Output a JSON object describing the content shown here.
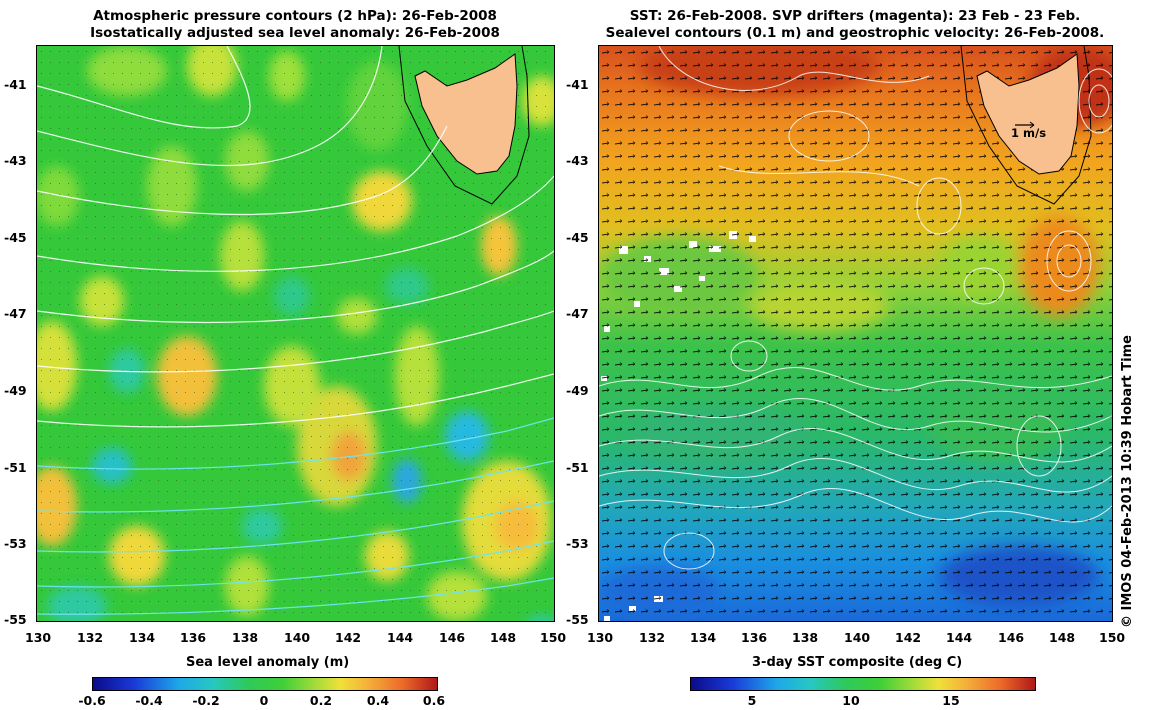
{
  "left_panel": {
    "title_line1": "Atmospheric pressure contours (2 hPa): 26-Feb-2008",
    "title_line2": "Isostatically adjusted sea level anomaly: 26-Feb-2008",
    "y_ticks": [
      "-41",
      "-43",
      "-45",
      "-47",
      "-49",
      "-51",
      "-53",
      "-55"
    ],
    "x_ticks": [
      "130",
      "132",
      "134",
      "136",
      "138",
      "140",
      "142",
      "144",
      "146",
      "148",
      "150"
    ],
    "colorbar_title": "Sea level anomaly (m)",
    "colorbar_ticks": [
      "-0.6",
      "-0.4",
      "-0.2",
      "0",
      "0.2",
      "0.4",
      "0.6"
    ]
  },
  "right_panel": {
    "title_line1": "SST: 26-Feb-2008. SVP drifters (magenta): 23 Feb - 23 Feb.",
    "title_line2": "Sealevel contours (0.1 m) and geostrophic velocity: 26-Feb-2008.",
    "y_ticks": [
      "-41",
      "-43",
      "-45",
      "-47",
      "-49",
      "-51",
      "-53",
      "-55"
    ],
    "x_ticks": [
      "130",
      "132",
      "134",
      "136",
      "138",
      "140",
      "142",
      "144",
      "146",
      "148",
      "150"
    ],
    "scale_label": "1 m/s",
    "colorbar_title": "3-day SST composite (deg C)",
    "colorbar_ticks": [
      "5",
      "10",
      "15"
    ]
  },
  "credit": "© IMOS 04-Feb-2013 10:39 Hobart Time",
  "colors": {
    "land": "#f7c08e",
    "contour": "#ffffff",
    "vector": "#000000"
  }
}
